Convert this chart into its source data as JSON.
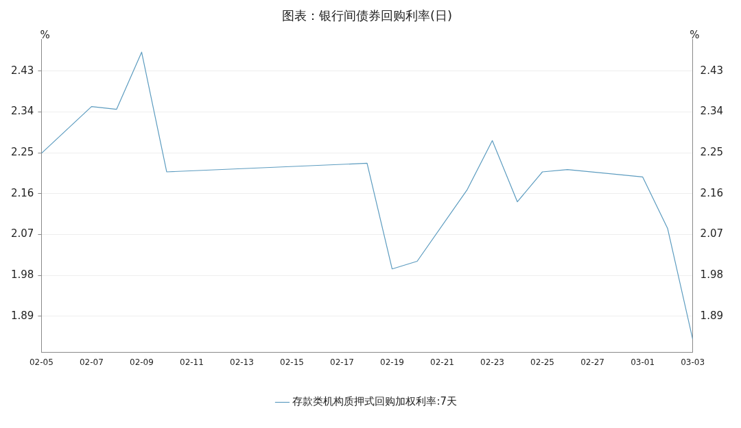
{
  "chart_data": {
    "type": "line",
    "title": "图表：银行间债券回购利率(日)",
    "ylabel": "%",
    "y2label": "%",
    "x": [
      "--02-05",
      "--02-07",
      "--02-08",
      "--02-09",
      "--02-10",
      "--02-18",
      "--02-19",
      "--02-20",
      "--02-22",
      "--02-23",
      "--02-24",
      "--02-25",
      "--02-26",
      "--03-01",
      "--03-02",
      "--03-03"
    ],
    "series": [
      {
        "name": "存款类机构质押式回购加权利率:7天",
        "color": "#5b9bbf",
        "values": [
          2.249,
          2.352,
          2.346,
          2.472,
          2.208,
          2.227,
          1.994,
          2.011,
          2.169,
          2.277,
          2.142,
          2.208,
          2.213,
          2.197,
          2.083,
          1.839
        ]
      }
    ],
    "xlim": [
      "--02-05",
      "--03-03"
    ],
    "xticks": [
      {
        "value": "--02-05",
        "label": "02-05"
      },
      {
        "value": "--02-07",
        "label": "02-07"
      },
      {
        "value": "--02-09",
        "label": "02-09"
      },
      {
        "value": "--02-11",
        "label": "02-11"
      },
      {
        "value": "--02-13",
        "label": "02-13"
      },
      {
        "value": "--02-15",
        "label": "02-15"
      },
      {
        "value": "--02-17",
        "label": "02-17"
      },
      {
        "value": "--02-19",
        "label": "02-19"
      },
      {
        "value": "--02-21",
        "label": "02-21"
      },
      {
        "value": "--02-23",
        "label": "02-23"
      },
      {
        "value": "--02-25",
        "label": "02-25"
      },
      {
        "value": "--02-27",
        "label": "02-27"
      },
      {
        "value": "--03-01",
        "label": "03-01"
      },
      {
        "value": "--03-03",
        "label": "03-03"
      }
    ],
    "ylim": [
      1.81,
      2.5
    ],
    "yticks": [
      1.89,
      1.98,
      2.07,
      2.16,
      2.25,
      2.34,
      2.43
    ],
    "y2lim": [
      1.81,
      2.5
    ],
    "y2ticks": [
      1.89,
      1.98,
      2.07,
      2.16,
      2.25,
      2.34,
      2.43
    ],
    "grid": "y",
    "legend": "bottom",
    "marker": "none",
    "line_style": "solid"
  }
}
